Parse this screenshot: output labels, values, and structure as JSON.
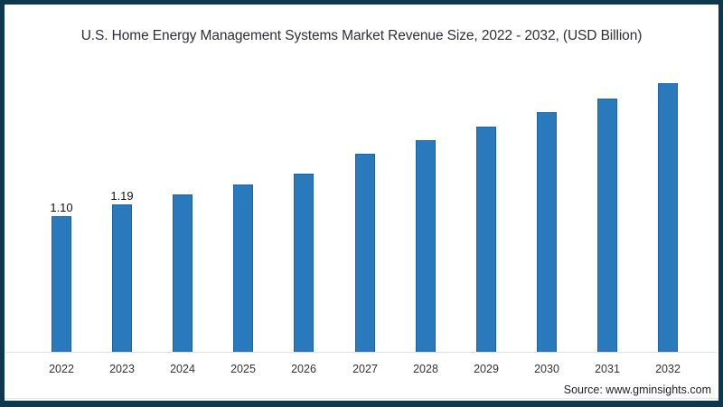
{
  "title": "U.S. Home Energy Management Systems Market Revenue Size, 2022 - 2032, (USD Billion)",
  "source": "Source: www.gminsights.com",
  "chart_data": {
    "type": "bar",
    "title": "U.S. Home Energy Management Systems Market Revenue Size, 2022 - 2032, (USD Billion)",
    "categories": [
      "2022",
      "2023",
      "2024",
      "2025",
      "2026",
      "2027",
      "2028",
      "2029",
      "2030",
      "2031",
      "2032"
    ],
    "values": [
      1.1,
      1.19,
      1.27,
      1.35,
      1.44,
      1.6,
      1.71,
      1.82,
      1.94,
      2.05,
      2.17
    ],
    "data_labels": {
      "2022": "1.10",
      "2023": "1.19"
    },
    "xlabel": "",
    "ylabel": "",
    "ylim": [
      0,
      2.4
    ],
    "grid": false,
    "legend": false,
    "annotation": "Source: www.gminsights.com"
  },
  "colors": {
    "frame_border": "#0e384e",
    "background": "#ffffff",
    "axis_line": "#e0e0e0",
    "title_text": "#2e2e38",
    "tick_text": "#333333",
    "label_text": "#111111",
    "source_text": "#222222",
    "bar_fill": "#2b79bd",
    "bar_edge": "#1d639f"
  }
}
